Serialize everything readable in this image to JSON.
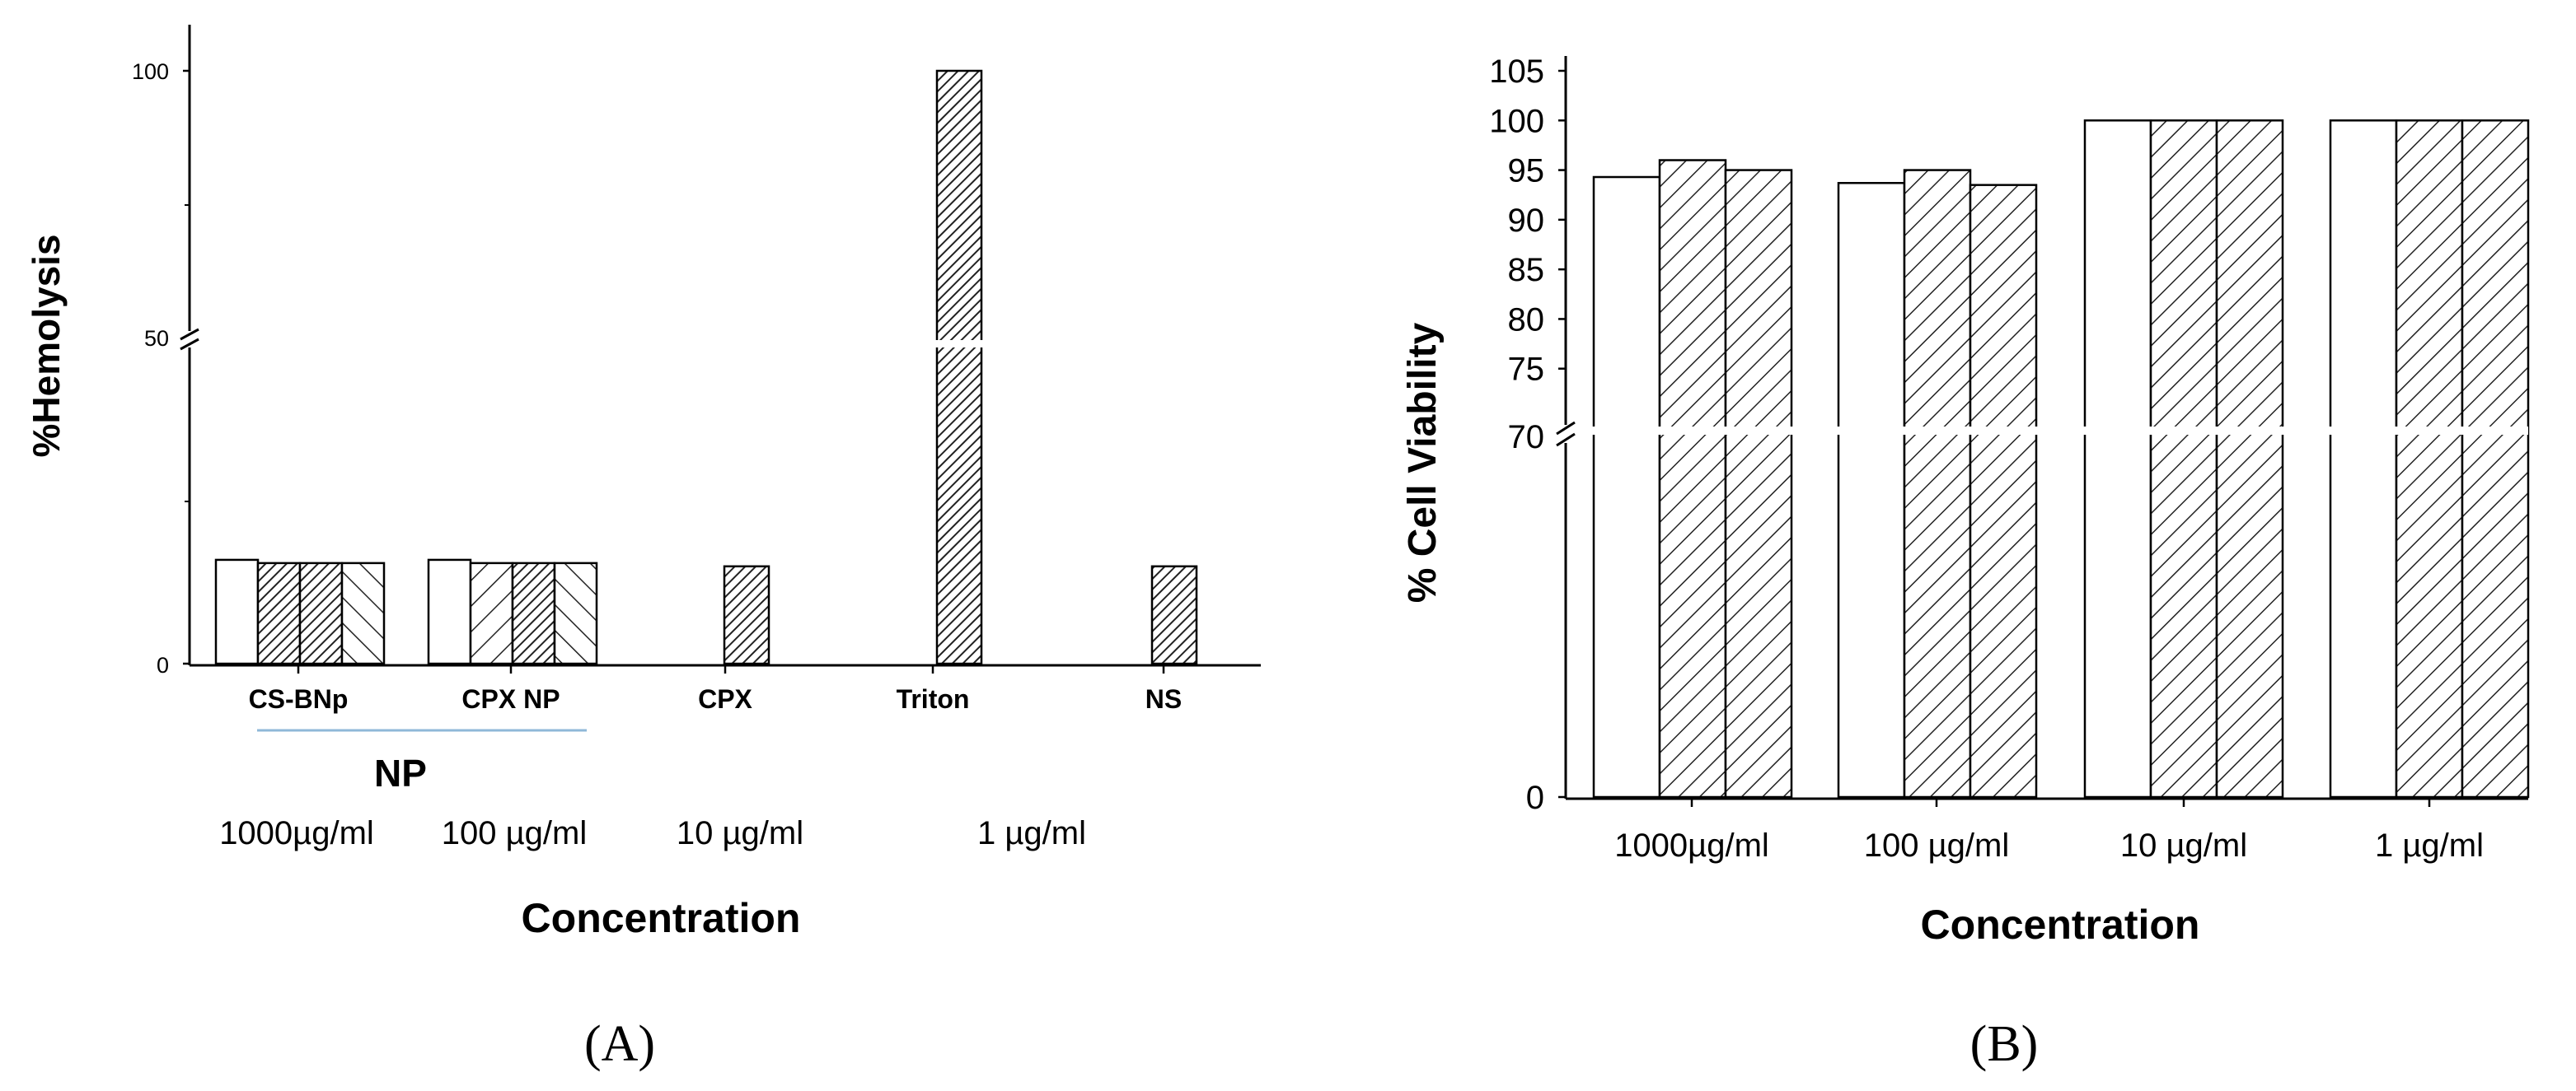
{
  "panels": [
    {
      "label": "(A)"
    },
    {
      "label": "(B)"
    }
  ],
  "chart_data": [
    {
      "type": "bar",
      "panel": "A",
      "ylabel": "%Hemolysis",
      "xlabel": "Concentration",
      "categories": [
        "CS-BNp",
        "CPX NP",
        "CPX",
        "Triton",
        "NS"
      ],
      "group_label": "NP",
      "concentration_labels": [
        "1000µg/ml",
        "100 µg/ml",
        "10 µg/ml",
        "1 µg/ml"
      ],
      "y_axis_break": true,
      "yticks": [
        "0",
        "50",
        "100"
      ],
      "ylim": [
        0,
        100
      ],
      "grid": false,
      "series": [
        {
          "values": [
            16,
            16,
            null,
            null,
            null
          ]
        },
        {
          "values": [
            15.5,
            15.5,
            null,
            null,
            null
          ]
        },
        {
          "values": [
            15.5,
            15.5,
            15,
            100,
            15
          ]
        },
        {
          "values": [
            15.5,
            15.5,
            null,
            null,
            null
          ]
        }
      ]
    },
    {
      "type": "bar",
      "panel": "B",
      "ylabel": "% Cell Viability",
      "xlabel": "Concentration",
      "categories": [
        "1000µg/ml",
        "100 µg/ml",
        "10 µg/ml",
        "1 µg/ml"
      ],
      "y_axis_break": true,
      "yticks": [
        "0",
        "70",
        "75",
        "80",
        "85",
        "90",
        "95",
        "100",
        "105"
      ],
      "ylim": [
        0,
        108
      ],
      "grid": false,
      "series": [
        {
          "values": [
            94.3,
            93.7,
            100,
            100
          ]
        },
        {
          "values": [
            96,
            95,
            100,
            100
          ]
        },
        {
          "values": [
            95,
            93.5,
            100,
            100
          ]
        }
      ]
    }
  ]
}
